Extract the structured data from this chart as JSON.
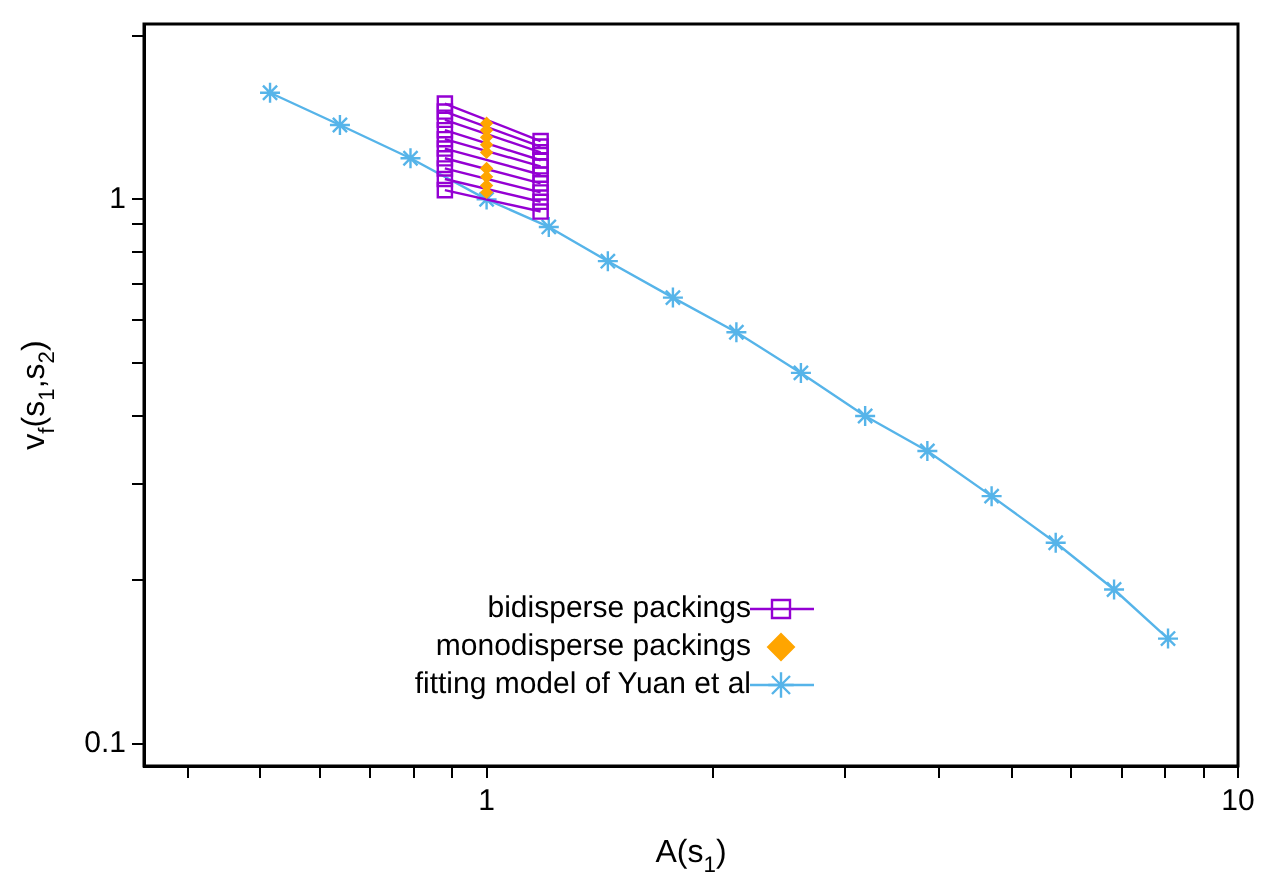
{
  "chart_data": {
    "type": "line",
    "xlabel": "A(s$_{1}$)",
    "ylabel": "v$_{f}$(s$_{1}$,s$_{2}$)",
    "log": "xy",
    "grid": false,
    "legend": "bottom left",
    "xlim": [
      0.35,
      10
    ],
    "ylim": [
      0.091,
      2.1
    ],
    "xticks": [
      {
        "value": 0.4,
        "label": null
      },
      {
        "value": 0.5,
        "label": null
      },
      {
        "value": 0.6,
        "label": null
      },
      {
        "value": 0.7,
        "label": null
      },
      {
        "value": 0.8,
        "label": null
      },
      {
        "value": 0.9,
        "label": null
      },
      1,
      {
        "value": 2,
        "label": null
      },
      {
        "value": 3,
        "label": null
      },
      {
        "value": 4,
        "label": null
      },
      {
        "value": 5,
        "label": null
      },
      {
        "value": 6,
        "label": null
      },
      {
        "value": 7,
        "label": null
      },
      {
        "value": 8,
        "label": null
      },
      {
        "value": 9,
        "label": null
      },
      10
    ],
    "yticks": [
      0.1,
      {
        "value": 0.2,
        "label": null
      },
      {
        "value": 0.3,
        "label": null
      },
      {
        "value": 0.4,
        "label": null
      },
      {
        "value": 0.5,
        "label": null
      },
      {
        "value": 0.6,
        "label": null
      },
      {
        "value": 0.7,
        "label": null
      },
      {
        "value": 0.8,
        "label": null
      },
      {
        "value": 0.9,
        "label": null
      },
      1,
      {
        "value": 2,
        "label": null
      }
    ],
    "series": [
      {
        "name": "bidisperse packings",
        "color": "#9400d3",
        "marker": "square",
        "x": [
          0.88,
          1.18
        ],
        "values": [
          1.5,
          1.28
        ]
      },
      {
        "color": "#9400d3",
        "marker": "square",
        "x": [
          0.88,
          1.18
        ],
        "values": [
          1.45,
          1.25
        ]
      },
      {
        "color": "#9400d3",
        "marker": "square",
        "x": [
          0.88,
          1.18
        ],
        "values": [
          1.4,
          1.22
        ]
      },
      {
        "color": "#9400d3",
        "marker": "square",
        "x": [
          0.88,
          1.18
        ],
        "values": [
          1.34,
          1.18
        ]
      },
      {
        "color": "#9400d3",
        "marker": "square",
        "x": [
          0.88,
          1.18
        ],
        "values": [
          1.29,
          1.15
        ]
      },
      {
        "color": "#9400d3",
        "marker": "square",
        "x": [
          0.88,
          1.18
        ],
        "values": [
          1.24,
          1.11
        ]
      },
      {
        "color": "#9400d3",
        "marker": "square",
        "x": [
          0.88,
          1.18
        ],
        "values": [
          1.19,
          1.07
        ]
      },
      {
        "color": "#9400d3",
        "marker": "square",
        "x": [
          0.88,
          1.18
        ],
        "values": [
          1.14,
          1.03
        ]
      },
      {
        "color": "#9400d3",
        "marker": "square",
        "x": [
          0.88,
          1.18
        ],
        "values": [
          1.09,
          0.99
        ]
      },
      {
        "color": "#9400d3",
        "marker": "square",
        "x": [
          0.88,
          1.18
        ],
        "values": [
          1.04,
          0.95
        ]
      },
      {
        "name": "monodisperse packings",
        "type": "scatter",
        "color": "#ffa500",
        "marker": "diamond",
        "x": [
          1,
          1,
          1,
          1,
          1,
          1,
          1,
          1,
          1
        ],
        "values": [
          1.38,
          1.34,
          1.3,
          1.26,
          1.22,
          1.14,
          1.1,
          1.06,
          1.03
        ]
      },
      {
        "name": "fitting model of Yuan et al",
        "color": "#56b4e9",
        "marker": "cross",
        "x": [
          0.515,
          0.638,
          0.792,
          1,
          1.21,
          1.45,
          1.77,
          2.15,
          2.62,
          3.19,
          3.86,
          4.7,
          5.72,
          6.84,
          8.07
        ],
        "values": [
          1.57,
          1.37,
          1.19,
          1,
          0.89,
          0.77,
          0.66,
          0.57,
          0.48,
          0.4,
          0.345,
          0.285,
          0.234,
          0.192,
          0.156
        ]
      }
    ]
  }
}
